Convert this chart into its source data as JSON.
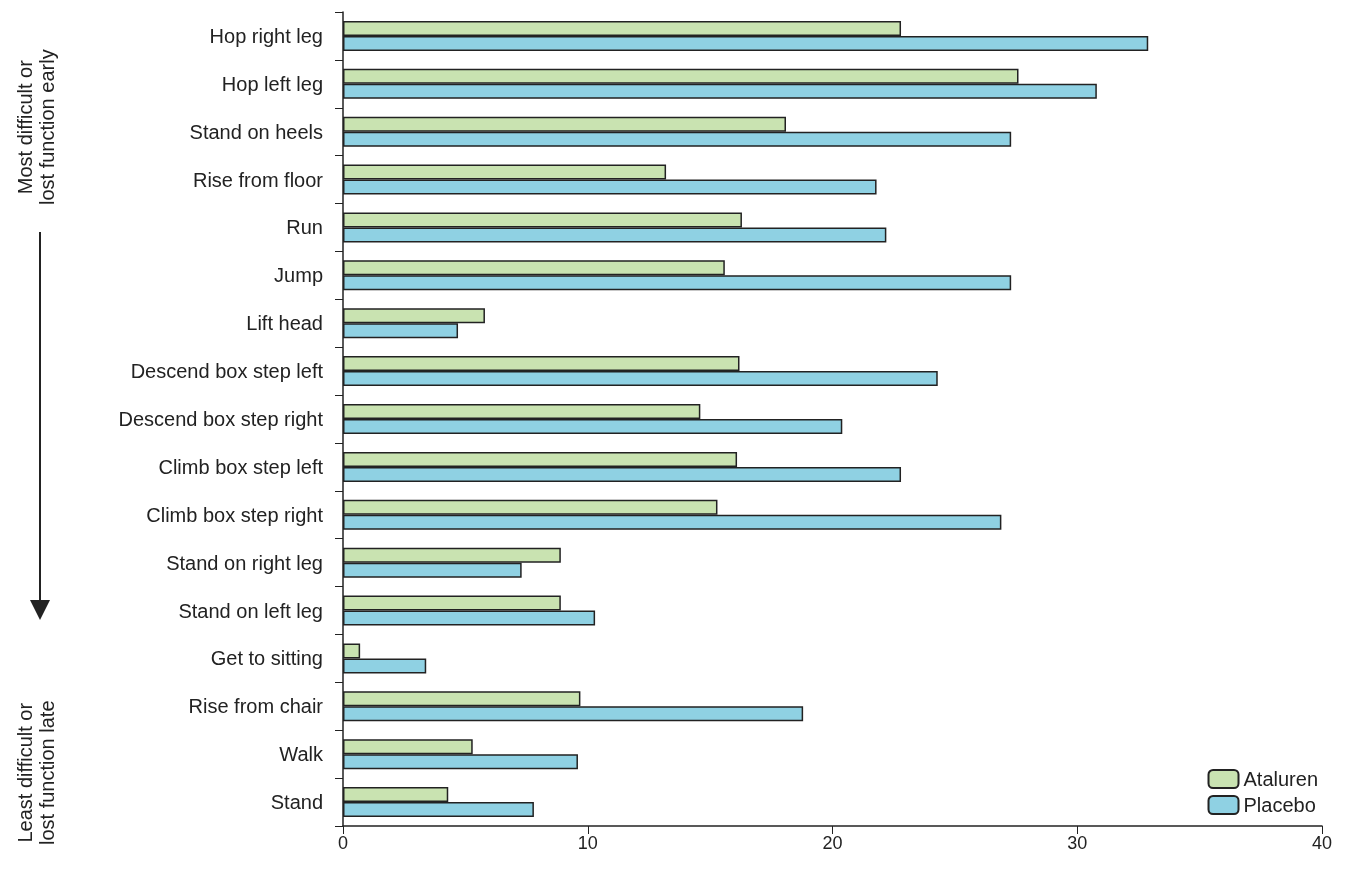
{
  "chart_data": {
    "type": "bar",
    "orientation": "horizontal",
    "categories": [
      "Hop right leg",
      "Hop left leg",
      "Stand on heels",
      "Rise from floor",
      "Run",
      "Jump",
      "Lift head",
      "Descend box step left",
      "Descend box step right",
      "Climb box step left",
      "Climb box step right",
      "Stand on right leg",
      "Stand on left leg",
      "Get to sitting",
      "Rise from chair",
      "Walk",
      "Stand"
    ],
    "series": [
      {
        "name": "Ataluren",
        "color": "#c9e3b1",
        "values": [
          22.8,
          27.6,
          18.1,
          13.2,
          16.3,
          15.6,
          5.8,
          16.2,
          14.6,
          16.1,
          15.3,
          8.9,
          8.9,
          0.7,
          9.7,
          5.3,
          4.3
        ]
      },
      {
        "name": "Placebo",
        "color": "#8fd1e3",
        "values": [
          32.9,
          30.8,
          27.3,
          21.8,
          22.2,
          27.3,
          4.7,
          24.3,
          20.4,
          22.8,
          26.9,
          7.3,
          10.3,
          3.4,
          18.8,
          9.6,
          7.8
        ]
      }
    ],
    "xlim": [
      0,
      40
    ],
    "xticks": [
      0,
      10,
      20,
      30,
      40
    ],
    "grid": false,
    "legend": "bottom right",
    "annotations": [
      "Most difficult or\nlost function early",
      "Least difficult or\nlost function late"
    ]
  }
}
